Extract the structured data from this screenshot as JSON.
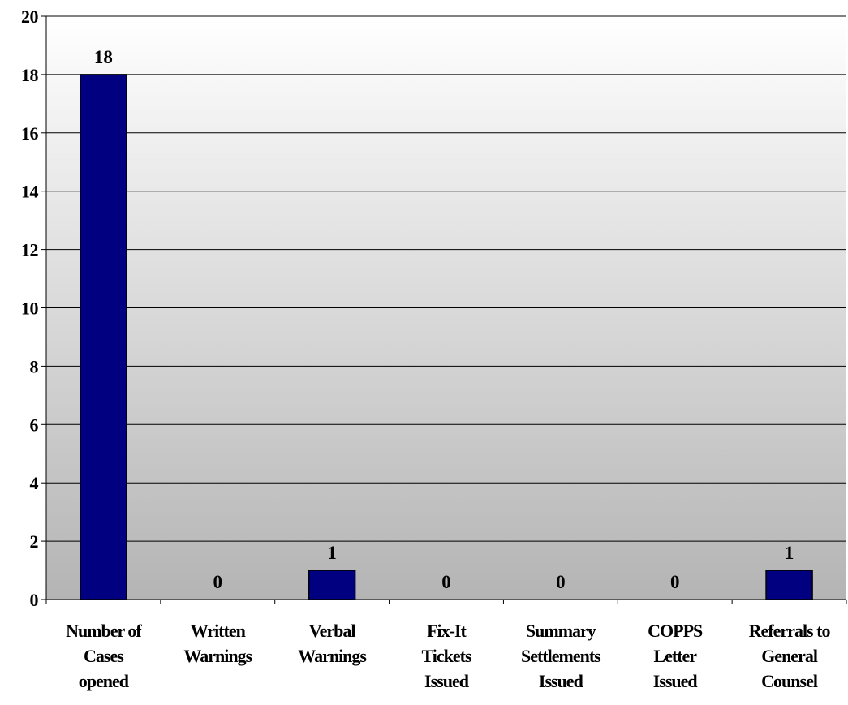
{
  "chart_data": {
    "type": "bar",
    "categories": [
      [
        "Number of",
        "Cases",
        "opened"
      ],
      [
        "Written",
        "Warnings"
      ],
      [
        "Verbal",
        "Warnings"
      ],
      [
        "Fix-It",
        "Tickets",
        "Issued"
      ],
      [
        "Summary",
        "Settlements",
        "Issued"
      ],
      [
        "COPPS",
        "Letter",
        "Issued"
      ],
      [
        "Referrals to",
        "General",
        "Counsel"
      ]
    ],
    "values": [
      18,
      0,
      1,
      0,
      0,
      0,
      1
    ],
    "title": "",
    "xlabel": "",
    "ylabel": "",
    "ylim": [
      0,
      20
    ],
    "yticks": [
      0,
      2,
      4,
      6,
      8,
      10,
      12,
      14,
      16,
      18,
      20
    ],
    "grid": true,
    "legend": "none",
    "data_labels": true,
    "colors": {
      "bar_fill": "#000080",
      "bar_stroke": "#000000",
      "plot_bg_top": "#ffffff",
      "plot_bg_bottom": "#b4b4b4",
      "gridline": "#000000"
    }
  }
}
